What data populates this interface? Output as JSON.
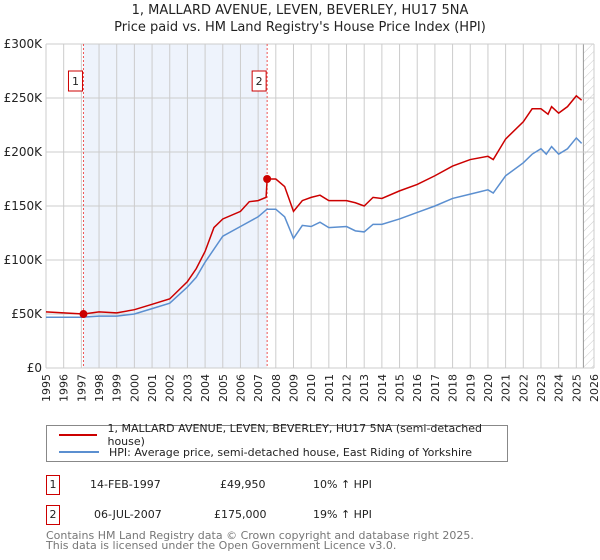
{
  "chart_data": {
    "type": "line",
    "title": "1, MALLARD AVENUE, LEVEN, BEVERLEY, HU17 5NA",
    "subtitle": "Price paid vs. HM Land Registry's House Price Index (HPI)",
    "xlim": [
      1995,
      2026
    ],
    "ylim": [
      0,
      300000
    ],
    "x_ticks": [
      "1995",
      "1996",
      "1997",
      "1998",
      "1999",
      "2000",
      "2001",
      "2002",
      "2003",
      "2004",
      "2005",
      "2006",
      "2007",
      "2008",
      "2009",
      "2010",
      "2011",
      "2012",
      "2013",
      "2014",
      "2015",
      "2016",
      "2017",
      "2018",
      "2019",
      "2020",
      "2021",
      "2022",
      "2023",
      "2024",
      "2025",
      "2026"
    ],
    "y_ticks": [
      {
        "v": 0,
        "l": "£0"
      },
      {
        "v": 50000,
        "l": "£50K"
      },
      {
        "v": 100000,
        "l": "£100K"
      },
      {
        "v": 150000,
        "l": "£150K"
      },
      {
        "v": 200000,
        "l": "£200K"
      },
      {
        "v": 250000,
        "l": "£250K"
      },
      {
        "v": 300000,
        "l": "£300K"
      }
    ],
    "grid": true,
    "shaded_range": [
      1997.12,
      2007.51
    ],
    "future_from": 2025.4,
    "series": [
      {
        "name": "1, MALLARD AVENUE, LEVEN, BEVERLEY, HU17 5NA (semi-detached house)",
        "color": "#cc0000",
        "x": [
          1995,
          1996,
          1997.12,
          1998,
          1999,
          2000,
          2001,
          2002,
          2003,
          2003.5,
          2004,
          2004.5,
          2005,
          2006,
          2006.5,
          2007,
          2007.45,
          2007.51,
          2008,
          2008.5,
          2009,
          2009.5,
          2010,
          2010.5,
          2011,
          2012,
          2012.5,
          2013,
          2013.5,
          2014,
          2015,
          2016,
          2017,
          2018,
          2019,
          2020,
          2020.3,
          2021,
          2022,
          2022.5,
          2023,
          2023.4,
          2023.6,
          2024,
          2024.5,
          2025,
          2025.3
        ],
        "y": [
          52000,
          51000,
          49950,
          52000,
          51000,
          54000,
          59000,
          64000,
          80000,
          92000,
          108000,
          130000,
          138000,
          145000,
          154000,
          155000,
          158000,
          175000,
          175000,
          168000,
          145000,
          155000,
          158000,
          160000,
          155000,
          155000,
          153000,
          150000,
          158000,
          157000,
          164000,
          170000,
          178000,
          187000,
          193000,
          196000,
          193000,
          212000,
          228000,
          240000,
          240000,
          235000,
          242000,
          236000,
          242000,
          252000,
          248000
        ]
      },
      {
        "name": "HPI: Average price, semi-detached house, East Riding of Yorkshire",
        "color": "#5b8fd0",
        "x": [
          1995,
          1996,
          1997,
          1998,
          1999,
          2000,
          2001,
          2002,
          2003,
          2003.5,
          2004,
          2005,
          2006,
          2007,
          2007.5,
          2008,
          2008.5,
          2009,
          2009.5,
          2010,
          2010.5,
          2011,
          2012,
          2012.5,
          2013,
          2013.5,
          2014,
          2015,
          2016,
          2017,
          2018,
          2019,
          2020,
          2020.3,
          2021,
          2022,
          2022.5,
          2023,
          2023.3,
          2023.6,
          2024,
          2024.5,
          2025,
          2025.3
        ],
        "y": [
          47000,
          47000,
          47000,
          48000,
          48000,
          50000,
          55000,
          60000,
          75000,
          84000,
          98000,
          122000,
          131000,
          140000,
          147000,
          147000,
          140000,
          120000,
          132000,
          131000,
          135000,
          130000,
          131000,
          127000,
          126000,
          133000,
          133000,
          138000,
          144000,
          150000,
          157000,
          161000,
          165000,
          162000,
          178000,
          190000,
          198000,
          203000,
          198000,
          205000,
          198000,
          203000,
          213000,
          208000
        ]
      }
    ],
    "sales": [
      {
        "label": "1",
        "x": 1997.12,
        "y": 49950
      },
      {
        "label": "2",
        "x": 2007.51,
        "y": 175000
      }
    ],
    "legend_placement": "below"
  },
  "transactions": [
    {
      "n": "1",
      "date": "14-FEB-1997",
      "price": "£49,950",
      "hpi": "10% ↑ HPI"
    },
    {
      "n": "2",
      "date": "06-JUL-2007",
      "price": "£175,000",
      "hpi": "19% ↑ HPI"
    }
  ],
  "footer": [
    "Contains HM Land Registry data © Crown copyright and database right 2025.",
    "This data is licensed under the Open Government Licence v3.0."
  ]
}
